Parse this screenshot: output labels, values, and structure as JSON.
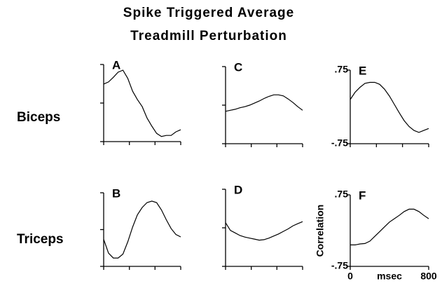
{
  "title": [
    "Spike Triggered Average",
    "Treadmill Perturbation"
  ],
  "row_labels": [
    "Biceps",
    "Triceps"
  ],
  "chart_data": [
    {
      "type": "line",
      "title": "A",
      "x": [
        0,
        50,
        100,
        150,
        200,
        250,
        300,
        350,
        400,
        450,
        500,
        550,
        600,
        650,
        700,
        750,
        800
      ],
      "values": [
        0.37,
        0.41,
        0.5,
        0.6,
        0.64,
        0.48,
        0.23,
        0.07,
        -0.07,
        -0.29,
        -0.45,
        -0.59,
        -0.65,
        -0.63,
        -0.63,
        -0.56,
        -0.52
      ],
      "xlim": [
        0,
        800
      ],
      "ylim": [
        -0.75,
        0.75
      ],
      "xticks": [
        0,
        267,
        533,
        800
      ],
      "yticks": [
        -0.75,
        0,
        0.75
      ]
    },
    {
      "type": "line",
      "title": "B",
      "x": [
        0,
        50,
        100,
        150,
        200,
        250,
        300,
        350,
        400,
        450,
        500,
        550,
        600,
        650,
        700,
        750,
        800
      ],
      "values": [
        -0.2,
        -0.48,
        -0.58,
        -0.58,
        -0.5,
        -0.25,
        0.05,
        0.3,
        0.45,
        0.55,
        0.58,
        0.55,
        0.4,
        0.2,
        0.02,
        -0.1,
        -0.15
      ],
      "xlim": [
        0,
        800
      ],
      "ylim": [
        -0.75,
        0.75
      ],
      "xticks": [
        0,
        267,
        533,
        800
      ],
      "yticks": [
        -0.75,
        0,
        0.75
      ]
    },
    {
      "type": "line",
      "title": "C",
      "x": [
        0,
        50,
        100,
        150,
        200,
        250,
        300,
        350,
        400,
        450,
        500,
        550,
        600,
        650,
        700,
        750,
        800
      ],
      "values": [
        -0.12,
        -0.1,
        -0.08,
        -0.05,
        -0.03,
        0,
        0.04,
        0.08,
        0.13,
        0.17,
        0.2,
        0.2,
        0.18,
        0.12,
        0.05,
        -0.03,
        -0.1
      ],
      "xlim": [
        0,
        800
      ],
      "ylim": [
        -0.75,
        0.75
      ],
      "xticks": [
        0,
        267,
        533,
        800
      ],
      "yticks": [
        -0.75,
        0,
        0.75
      ]
    },
    {
      "type": "line",
      "title": "D",
      "x": [
        0,
        50,
        100,
        150,
        200,
        250,
        300,
        350,
        400,
        450,
        500,
        550,
        600,
        650,
        700,
        750,
        800
      ],
      "values": [
        0.1,
        -0.05,
        -0.1,
        -0.15,
        -0.18,
        -0.2,
        -0.22,
        -0.24,
        -0.23,
        -0.2,
        -0.16,
        -0.12,
        -0.07,
        -0.02,
        0.04,
        0.08,
        0.12
      ],
      "xlim": [
        0,
        800
      ],
      "ylim": [
        -0.75,
        0.75
      ],
      "xticks": [
        0,
        267,
        533,
        800
      ],
      "yticks": [
        -0.75,
        0,
        0.75
      ]
    },
    {
      "type": "line",
      "title": "E",
      "x": [
        0,
        50,
        100,
        150,
        200,
        250,
        300,
        350,
        400,
        450,
        500,
        550,
        600,
        650,
        700,
        750,
        800
      ],
      "values": [
        0.15,
        0.3,
        0.4,
        0.48,
        0.5,
        0.5,
        0.46,
        0.36,
        0.22,
        0.05,
        -0.12,
        -0.28,
        -0.4,
        -0.48,
        -0.52,
        -0.48,
        -0.44
      ],
      "xlim": [
        0,
        800
      ],
      "ylim": [
        -0.75,
        0.75
      ],
      "xticks": [
        0,
        267,
        533,
        800
      ],
      "yticks": [
        {
          "value": -0.75,
          "label": "-.75"
        },
        {
          "value": 0.75,
          "label": ".75"
        }
      ]
    },
    {
      "type": "line",
      "title": "F",
      "x": [
        0,
        50,
        100,
        150,
        200,
        250,
        300,
        350,
        400,
        450,
        500,
        550,
        600,
        650,
        700,
        750,
        800
      ],
      "values": [
        -0.3,
        -0.3,
        -0.28,
        -0.27,
        -0.22,
        -0.12,
        -0.02,
        0.08,
        0.18,
        0.25,
        0.32,
        0.4,
        0.45,
        0.45,
        0.4,
        0.32,
        0.25
      ],
      "xlim": [
        0,
        800
      ],
      "ylim": [
        -0.75,
        0.75
      ],
      "xticks": [
        0,
        800
      ],
      "yticks": [
        {
          "value": -0.75,
          "label": "-.75"
        },
        {
          "value": 0.75,
          "label": ".75"
        }
      ],
      "xlabel": "msec",
      "ylabel": "Correlation"
    }
  ]
}
